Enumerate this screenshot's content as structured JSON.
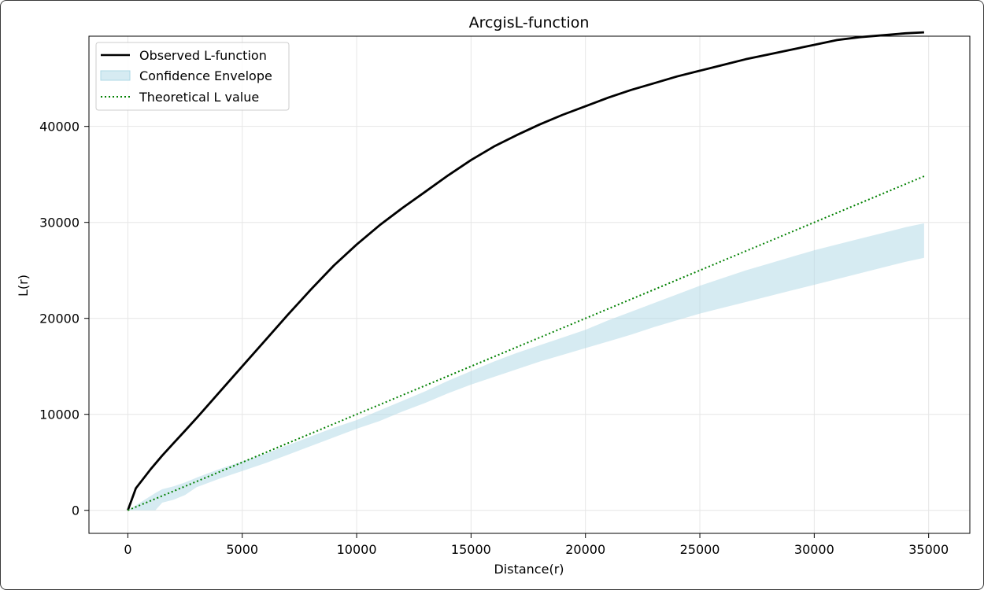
{
  "chart_data": {
    "type": "line",
    "title": "ArcgisL-function",
    "xlabel": "Distance(r)",
    "ylabel": "L(r)",
    "xlim": [
      -1700,
      36800
    ],
    "ylim": [
      -2400,
      49400
    ],
    "xticks": [
      0,
      5000,
      10000,
      15000,
      20000,
      25000,
      30000,
      35000
    ],
    "yticks": [
      0,
      10000,
      20000,
      30000,
      40000
    ],
    "grid": true,
    "legend_position": "upper-left",
    "series": [
      {
        "name": "Observed L-function",
        "kind": "line",
        "color": "#000000",
        "x": [
          0,
          350,
          1000,
          1500,
          2000,
          2500,
          3000,
          4000,
          5000,
          6000,
          7000,
          8000,
          9000,
          10000,
          11000,
          12000,
          13000,
          14000,
          15000,
          16000,
          17000,
          18000,
          19000,
          20000,
          21000,
          22000,
          23000,
          24000,
          25000,
          26000,
          27000,
          28000,
          29000,
          30000,
          31000,
          32000,
          33000,
          34000,
          34800
        ],
        "y": [
          0,
          2300,
          4300,
          5700,
          7000,
          8300,
          9600,
          12300,
          15000,
          17700,
          20400,
          23000,
          25500,
          27700,
          29700,
          31500,
          33200,
          34900,
          36500,
          37900,
          39100,
          40200,
          41200,
          42100,
          43000,
          43800,
          44500,
          45200,
          45800,
          46400,
          47000,
          47500,
          48000,
          48500,
          49000,
          49300,
          49500,
          49700,
          49800
        ]
      },
      {
        "name": "Confidence Envelope",
        "kind": "band",
        "color": "#add8e6",
        "x": [
          0,
          1200,
          1500,
          2000,
          2500,
          3000,
          4000,
          5000,
          6000,
          7000,
          8000,
          9000,
          10000,
          11000,
          12000,
          13000,
          14000,
          15000,
          16000,
          17000,
          18000,
          19000,
          20000,
          21000,
          22000,
          23000,
          24000,
          25000,
          26000,
          27000,
          28000,
          29000,
          30000,
          31000,
          32000,
          33000,
          34000,
          34800
        ],
        "lower": [
          0,
          0,
          800,
          1100,
          1600,
          2400,
          3300,
          4100,
          4900,
          5800,
          6700,
          7600,
          8500,
          9300,
          10300,
          11200,
          12200,
          13100,
          13900,
          14700,
          15500,
          16200,
          16900,
          17600,
          18300,
          19100,
          19800,
          20500,
          21100,
          21700,
          22300,
          22900,
          23500,
          24100,
          24700,
          25300,
          25900,
          26300
        ],
        "upper": [
          0,
          1800,
          2200,
          2500,
          2900,
          3400,
          4300,
          5100,
          5900,
          6800,
          7700,
          8600,
          9400,
          10400,
          11400,
          12400,
          13500,
          14500,
          15500,
          16400,
          17200,
          18000,
          18800,
          19800,
          20700,
          21600,
          22500,
          23400,
          24200,
          25000,
          25700,
          26400,
          27100,
          27700,
          28300,
          28900,
          29500,
          29900
        ]
      },
      {
        "name": "Theoretical L value",
        "kind": "dotted-line",
        "color": "#008000",
        "x": [
          0,
          34800
        ],
        "y": [
          0,
          34800
        ]
      }
    ]
  }
}
